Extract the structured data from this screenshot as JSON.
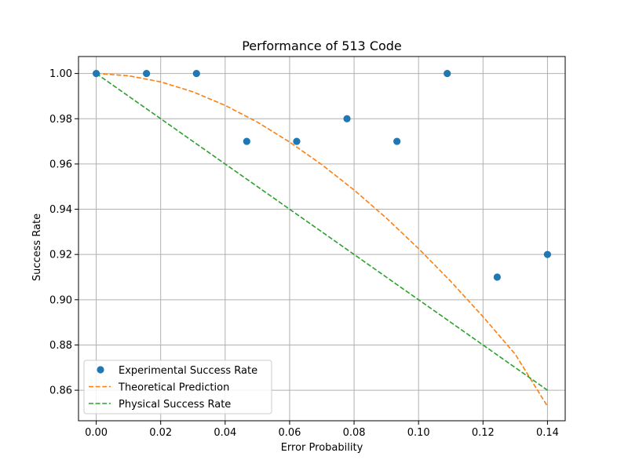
{
  "chart_data": {
    "type": "scatter",
    "title": "Performance of 513 Code",
    "xlabel": "Error Probability",
    "ylabel": "Success Rate",
    "xlim": [
      -0.0055,
      0.1455
    ],
    "ylim": [
      0.8465,
      1.0075
    ],
    "xticks": [
      0.0,
      0.02,
      0.04,
      0.06,
      0.08,
      0.1,
      0.12,
      0.14
    ],
    "xtick_labels": [
      "0.00",
      "0.02",
      "0.04",
      "0.06",
      "0.08",
      "0.10",
      "0.12",
      "0.14"
    ],
    "yticks": [
      0.86,
      0.88,
      0.9,
      0.92,
      0.94,
      0.96,
      0.98,
      1.0
    ],
    "ytick_labels": [
      "0.86",
      "0.88",
      "0.90",
      "0.92",
      "0.94",
      "0.96",
      "0.98",
      "1.00"
    ],
    "grid": true,
    "legend_position": "lower-left",
    "series": [
      {
        "name": "Experimental Success Rate",
        "kind": "scatter",
        "color": "#1f77b4",
        "x": [
          0.0,
          0.0156,
          0.0311,
          0.0467,
          0.0622,
          0.0778,
          0.0933,
          0.1089,
          0.1244,
          0.14
        ],
        "y": [
          1.0,
          1.0,
          1.0,
          0.97,
          0.97,
          0.98,
          0.97,
          1.0,
          0.91,
          0.92
        ]
      },
      {
        "name": "Theoretical Prediction",
        "kind": "dashed-line",
        "color": "#ff7f0e",
        "x": [
          0.0,
          0.01,
          0.02,
          0.03,
          0.04,
          0.05,
          0.06,
          0.07,
          0.08,
          0.09,
          0.1,
          0.11,
          0.12,
          0.13,
          0.14
        ],
        "y": [
          1.0,
          0.999,
          0.9963,
          0.9919,
          0.9859,
          0.9785,
          0.9697,
          0.9597,
          0.9485,
          0.9361,
          0.9226,
          0.9081,
          0.8925,
          0.8759,
          0.8529
        ]
      },
      {
        "name": "Physical Success Rate",
        "kind": "dashed-line",
        "color": "#2ca02c",
        "x": [
          0.0,
          0.14
        ],
        "y": [
          1.0,
          0.86
        ]
      }
    ]
  }
}
